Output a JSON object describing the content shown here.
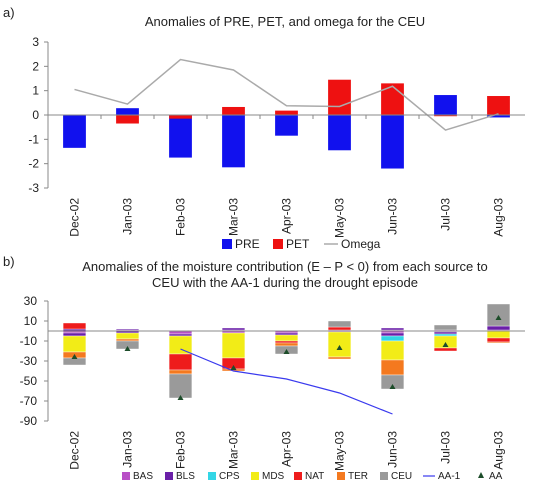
{
  "panel_a": {
    "letter": "a)",
    "legend": [
      {
        "label": "PRE",
        "color": "#1111ee",
        "kind": "swatch"
      },
      {
        "label": "PET",
        "color": "#ee1111",
        "kind": "swatch"
      },
      {
        "label": "Omega",
        "color": "#aaaaaa",
        "kind": "line"
      }
    ]
  },
  "panel_b": {
    "letter": "b)",
    "legend": [
      {
        "label": "BAS",
        "color": "#b84fc6",
        "kind": "swatch"
      },
      {
        "label": "BLS",
        "color": "#6a1fa8",
        "kind": "swatch"
      },
      {
        "label": "CPS",
        "color": "#33d6e6",
        "kind": "swatch"
      },
      {
        "label": "MDS",
        "color": "#f2ec17",
        "kind": "swatch"
      },
      {
        "label": "NAT",
        "color": "#ee1c1c",
        "kind": "swatch"
      },
      {
        "label": "TER",
        "color": "#f4791f",
        "kind": "swatch"
      },
      {
        "label": "CEU",
        "color": "#9a9a9a",
        "kind": "swatch"
      },
      {
        "label": "AA-1",
        "color": "#3a3aee",
        "kind": "line"
      },
      {
        "label": "AA",
        "color": "#1d4d2a",
        "kind": "marker"
      }
    ]
  },
  "chart_data": [
    {
      "type": "bar",
      "title": "Anomalies of PRE, PET, and omega for the CEU",
      "categories": [
        "Dec-02",
        "Jan-03",
        "Feb-03",
        "Mar-03",
        "Apr-03",
        "May-03",
        "Jun-03",
        "Jul-03",
        "Aug-03"
      ],
      "ylim": [
        -3,
        3
      ],
      "yticks": [
        -3,
        -2,
        -1,
        0,
        1,
        2,
        3
      ],
      "grid": false,
      "legend_position": "bottom",
      "series": [
        {
          "name": "PRE",
          "type": "bar",
          "values": [
            -1.35,
            0.28,
            -1.75,
            -2.15,
            -0.85,
            -1.45,
            -2.2,
            0.82,
            -0.1
          ]
        },
        {
          "name": "PET",
          "type": "bar",
          "values": [
            0.0,
            -0.35,
            -0.15,
            0.33,
            0.18,
            1.45,
            1.3,
            -0.05,
            0.78
          ]
        },
        {
          "name": "Omega",
          "type": "line",
          "values": [
            1.05,
            0.45,
            2.28,
            1.85,
            0.38,
            0.35,
            1.18,
            -0.62,
            0.05
          ]
        }
      ]
    },
    {
      "type": "bar",
      "title": "Anomalies of the moisture contribution (E – P < 0) from each source to CEU with the AA-1 during the drought episode",
      "title_lines": [
        "Anomalies of the moisture contribution (E – P < 0) from each source to",
        "CEU with the AA-1 during the drought episode"
      ],
      "categories": [
        "Dec-02",
        "Jan-03",
        "Feb-03",
        "Mar-03",
        "Apr-03",
        "May-03",
        "Jun-03",
        "Jul-03",
        "Aug-03"
      ],
      "ylim": [
        -90,
        30
      ],
      "yticks": [
        30,
        10,
        -10,
        -30,
        -50,
        -70,
        -90
      ],
      "grid": false,
      "legend_position": "bottom",
      "stacked": true,
      "stacks": [
        [
          {
            "name": "BAS",
            "value": 0
          },
          {
            "name": "BLS",
            "value": 2
          },
          {
            "name": "NAT",
            "value": 6
          }
        ],
        [
          {
            "name": "BAS",
            "value": 1
          },
          {
            "name": "BLS",
            "value": 1
          }
        ],
        [
          {
            "name": "BAS",
            "value": 0
          }
        ],
        [
          {
            "name": "BAS",
            "value": 1
          },
          {
            "name": "BLS",
            "value": 2
          }
        ],
        [
          {
            "name": "BAS",
            "value": 0
          }
        ],
        [
          {
            "name": "BAS",
            "value": 1
          },
          {
            "name": "NAT",
            "value": 3
          },
          {
            "name": "CEU",
            "value": 6
          }
        ],
        [
          {
            "name": "BAS",
            "value": 1
          },
          {
            "name": "BLS",
            "value": 2
          }
        ],
        [
          {
            "name": "BAS",
            "value": 1
          },
          {
            "name": "CEU",
            "value": 5
          }
        ],
        [
          {
            "name": "BAS",
            "value": 1
          },
          {
            "name": "BLS",
            "value": 4
          },
          {
            "name": "CEU",
            "value": 22
          }
        ]
      ],
      "negative_stacks": [
        [
          {
            "name": "BAS",
            "value": -2
          },
          {
            "name": "BLS",
            "value": -3
          },
          {
            "name": "MDS",
            "value": -16
          },
          {
            "name": "TER",
            "value": -6
          },
          {
            "name": "CEU",
            "value": -7
          }
        ],
        [
          {
            "name": "BLS",
            "value": -2
          },
          {
            "name": "MDS",
            "value": -6
          },
          {
            "name": "TER",
            "value": -2
          },
          {
            "name": "CEU",
            "value": -8
          }
        ],
        [
          {
            "name": "BAS",
            "value": -3
          },
          {
            "name": "BLS",
            "value": -2
          },
          {
            "name": "MDS",
            "value": -18
          },
          {
            "name": "NAT",
            "value": -16
          },
          {
            "name": "TER",
            "value": -4
          },
          {
            "name": "CEU",
            "value": -24
          }
        ],
        [
          {
            "name": "BAS",
            "value": -2
          },
          {
            "name": "MDS",
            "value": -25
          },
          {
            "name": "NAT",
            "value": -11
          },
          {
            "name": "TER",
            "value": -2
          }
        ],
        [
          {
            "name": "BAS",
            "value": -2
          },
          {
            "name": "BLS",
            "value": -2
          },
          {
            "name": "MDS",
            "value": -6
          },
          {
            "name": "NAT",
            "value": -2
          },
          {
            "name": "TER",
            "value": -3
          },
          {
            "name": "CEU",
            "value": -8
          }
        ],
        [
          {
            "name": "BAS",
            "value": -1
          },
          {
            "name": "MDS",
            "value": -25
          },
          {
            "name": "TER",
            "value": -2
          }
        ],
        [
          {
            "name": "BAS",
            "value": -2
          },
          {
            "name": "BLS",
            "value": -3
          },
          {
            "name": "CPS",
            "value": -5
          },
          {
            "name": "MDS",
            "value": -19
          },
          {
            "name": "TER",
            "value": -15
          },
          {
            "name": "CEU",
            "value": -14
          }
        ],
        [
          {
            "name": "BAS",
            "value": -1
          },
          {
            "name": "BLS",
            "value": -2
          },
          {
            "name": "CPS",
            "value": -2
          },
          {
            "name": "MDS",
            "value": -12
          },
          {
            "name": "NAT",
            "value": -3
          }
        ],
        [
          {
            "name": "MDS",
            "value": -7
          },
          {
            "name": "NAT",
            "value": -4
          },
          {
            "name": "TER",
            "value": -1
          }
        ]
      ],
      "series": [
        {
          "name": "AA-1",
          "type": "line",
          "x": [
            "Feb-03",
            "Mar-03",
            "Apr-03",
            "May-03",
            "Jun-03"
          ],
          "values": [
            -18,
            -40,
            -48,
            -62,
            -83
          ]
        },
        {
          "name": "AA",
          "type": "marker",
          "values": [
            -26,
            -18,
            -67,
            -37,
            -21,
            -17,
            -56,
            -14,
            13
          ]
        }
      ]
    }
  ]
}
